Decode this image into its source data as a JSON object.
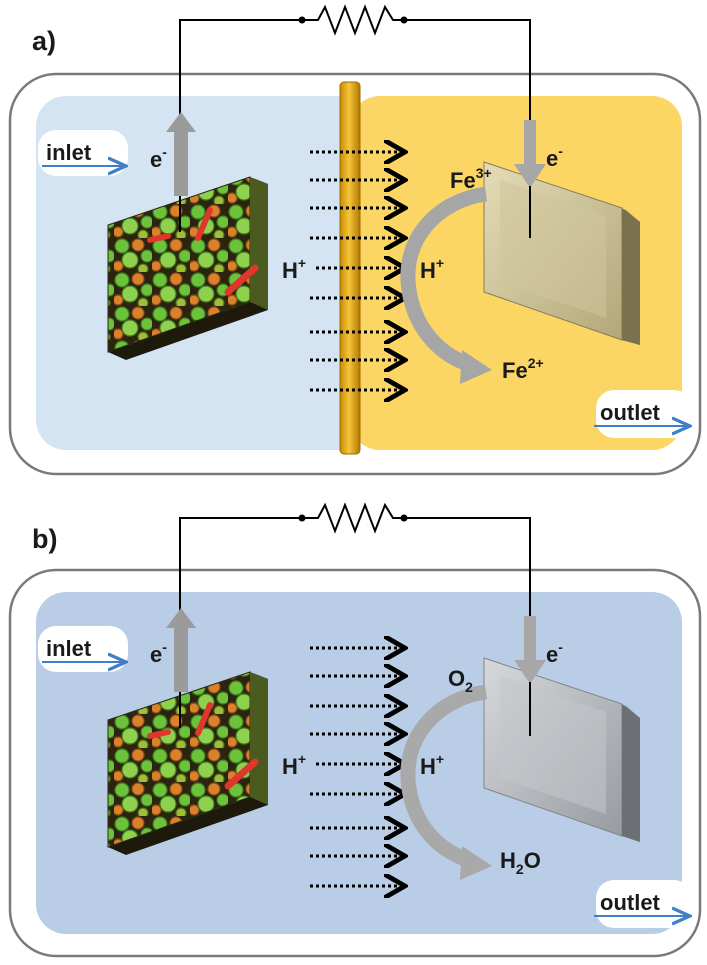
{
  "panels": [
    {
      "label": "a)",
      "inlet": "inlet",
      "outlet": "outlet",
      "anode_electron": "e",
      "cathode_electron": "e",
      "charge_minus": "-",
      "proton_left": "H",
      "proton_right": "H",
      "charge_plus": "+",
      "oxidant_base": "Fe",
      "oxidant_charge": "3+",
      "product_base": "Fe",
      "product_charge": "2+",
      "separator": "membrane",
      "anode_color": "#d5e4f3",
      "cathode_color": "#fbd664"
    },
    {
      "label": "b)",
      "inlet": "inlet",
      "outlet": "outlet",
      "anode_electron": "e",
      "cathode_electron": "e",
      "charge_minus": "-",
      "proton_left": "H",
      "proton_right": "H",
      "charge_plus": "+",
      "oxidant_base": "O",
      "oxidant_sub": "2",
      "product_H": "H",
      "product_sub": "2",
      "product_O": "O",
      "chamber_color": "#b9cde6"
    }
  ],
  "colors": {
    "membrane": "#e8ad10",
    "arrow_blue": "#3f7fc7",
    "cathode_panel_a": "#c9bd8f",
    "cathode_panel_b": "#a9adb2",
    "biofilm_green": "#6cc23a",
    "biofilm_orange": "#d9822b",
    "bacteria_red": "#e0372c"
  },
  "icons": [
    "resistor-icon",
    "biofilm-anode-icon",
    "cathode-plate-icon",
    "proton-arrow-icon"
  ]
}
